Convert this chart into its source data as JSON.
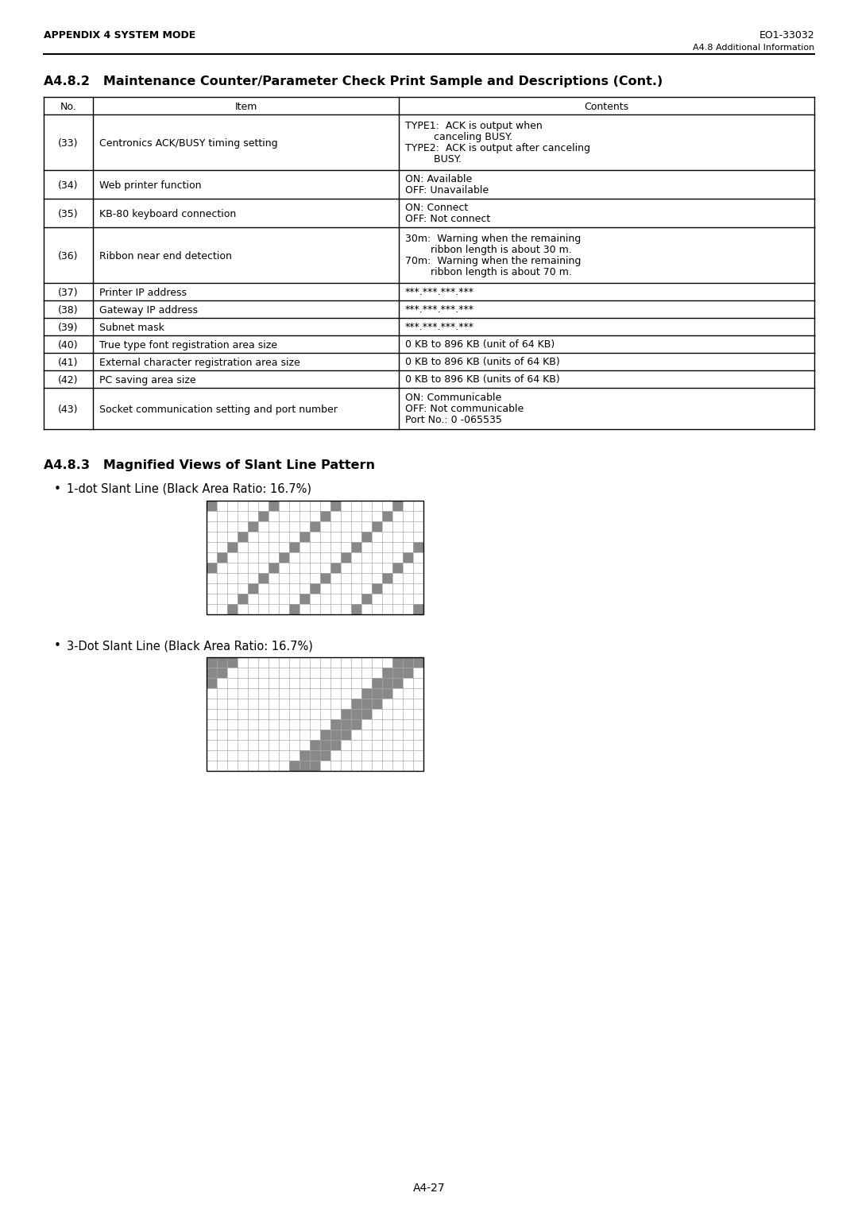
{
  "page_header_left": "APPENDIX 4 SYSTEM MODE",
  "page_header_right": "EO1-33032",
  "page_subheader_right": "A4.8 Additional Information",
  "section_title": "A4.8.2   Maintenance Counter/Parameter Check Print Sample and Descriptions (Cont.)",
  "table_rows": [
    {
      "no": "(33)",
      "item": "Centronics ACK/BUSY timing setting",
      "contents_lines": [
        "TYPE1:  ACK is output when",
        "         canceling BUSY.",
        "TYPE2:  ACK is output after canceling",
        "         BUSY."
      ]
    },
    {
      "no": "(34)",
      "item": "Web printer function",
      "contents_lines": [
        "ON: Available",
        "OFF: Unavailable"
      ]
    },
    {
      "no": "(35)",
      "item": "KB-80 keyboard connection",
      "contents_lines": [
        "ON: Connect",
        "OFF: Not connect"
      ]
    },
    {
      "no": "(36)",
      "item": "Ribbon near end detection",
      "contents_lines": [
        "30m:  Warning when the remaining",
        "        ribbon length is about 30 m.",
        "70m:  Warning when the remaining",
        "        ribbon length is about 70 m."
      ]
    },
    {
      "no": "(37)",
      "item": "Printer IP address",
      "contents_lines": [
        "***.***.***.***"
      ]
    },
    {
      "no": "(38)",
      "item": "Gateway IP address",
      "contents_lines": [
        "***.***.***.***"
      ]
    },
    {
      "no": "(39)",
      "item": "Subnet mask",
      "contents_lines": [
        "***.***.***.***"
      ]
    },
    {
      "no": "(40)",
      "item": "True type font registration area size",
      "contents_lines": [
        "0 KB to 896 KB (unit of 64 KB)"
      ]
    },
    {
      "no": "(41)",
      "item": "External character registration area size",
      "contents_lines": [
        "0 KB to 896 KB (units of 64 KB)"
      ]
    },
    {
      "no": "(42)",
      "item": "PC saving area size",
      "contents_lines": [
        "0 KB to 896 KB (units of 64 KB)"
      ]
    },
    {
      "no": "(43)",
      "item": "Socket communication setting and port number",
      "contents_lines": [
        "ON: Communicable",
        "OFF: Not communicable",
        "Port No.: 0 -065535"
      ]
    }
  ],
  "section2_title": "A4.8.3   Magnified Views of Slant Line Pattern",
  "bullet1_text": "1-dot Slant Line (Black Area Ratio: 16.7%)",
  "bullet2_text": "3-Dot Slant Line (Black Area Ratio: 16.7%)",
  "footer_text": "A4-27",
  "background_color": "#ffffff",
  "text_color": "#000000",
  "grid_color": "#888888",
  "cell_fill_color": "#888888",
  "grid1_cols": 21,
  "grid1_rows": 11,
  "grid2_cols": 21,
  "grid2_rows": 11,
  "cell_size": 13
}
